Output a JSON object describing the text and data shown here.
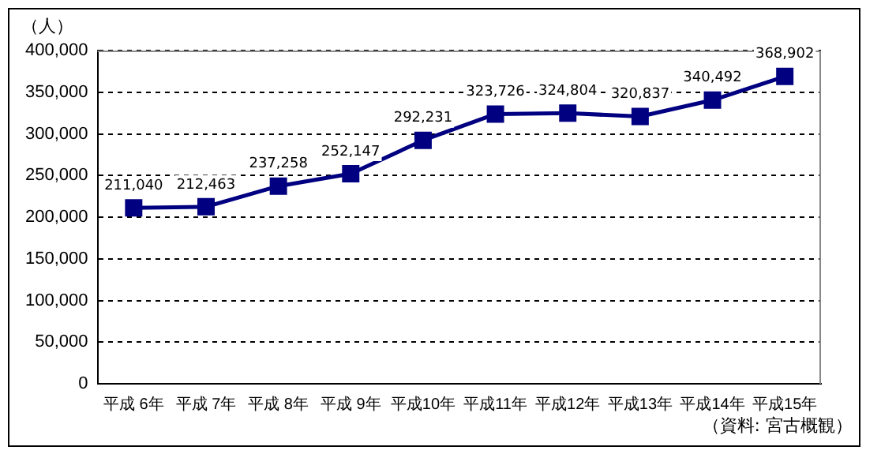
{
  "chart_data": {
    "type": "line",
    "ylabel": "（人）",
    "categories": [
      "平成 6年",
      "平成 7年",
      "平成 8年",
      "平成 9年",
      "平成10年",
      "平成11年",
      "平成12年",
      "平成13年",
      "平成14年",
      "平成15年"
    ],
    "series": [
      {
        "color": "#000080",
        "values": [
          211040,
          212463,
          237258,
          252147,
          292231,
          323726,
          324804,
          320837,
          340492,
          368902
        ],
        "value_labels": [
          "211,040",
          "212,463",
          "237,258",
          "252,147",
          "292,231",
          "323,726",
          "324,804",
          "320,837",
          "340,492",
          "368,902"
        ]
      }
    ],
    "ylim": [
      0,
      400000
    ],
    "yticks": [
      {
        "value": 0,
        "label": "0"
      },
      {
        "value": 50000,
        "label": "50,000"
      },
      {
        "value": 100000,
        "label": "100,000"
      },
      {
        "value": 150000,
        "label": "150,000"
      },
      {
        "value": 200000,
        "label": "200,000"
      },
      {
        "value": 250000,
        "label": "250,000"
      },
      {
        "value": 300000,
        "label": "300,000"
      },
      {
        "value": 350000,
        "label": "350,000"
      },
      {
        "value": 400000,
        "label": "400,000"
      }
    ],
    "grid": "y",
    "marker": "square",
    "line_style": "solid",
    "legend": false,
    "annotations": [
      "（資料: 宮古概観）"
    ]
  }
}
